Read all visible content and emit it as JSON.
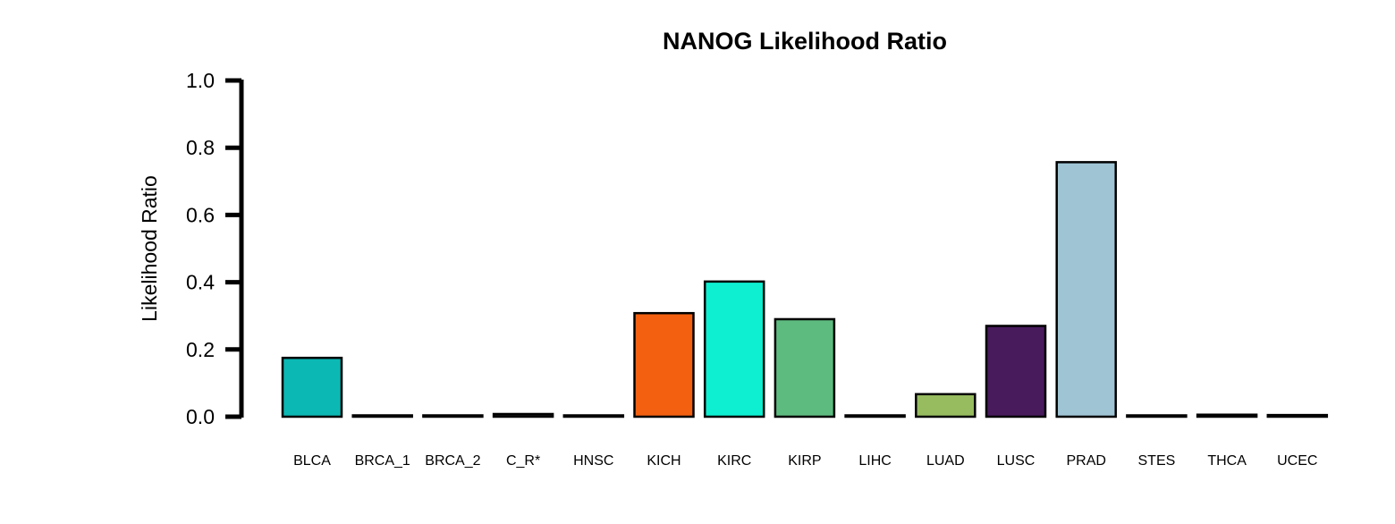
{
  "chart_data": {
    "type": "bar",
    "title": "NANOG Likelihood Ratio",
    "xlabel": "",
    "ylabel": "Likelihood Ratio",
    "ylim": [
      0,
      1.0
    ],
    "yticks": [
      "0.0",
      "0.2",
      "0.4",
      "0.6",
      "0.8",
      "1.0"
    ],
    "grid": false,
    "categories": [
      "BLCA",
      "BRCA_1",
      "BRCA_2",
      "C_R*",
      "HNSC",
      "KICH",
      "KIRC",
      "KIRP",
      "LIHC",
      "LUAD",
      "LUSC",
      "PRAD",
      "STES",
      "THCA",
      "UCEC"
    ],
    "values": [
      0.175,
      0.004,
      0.002,
      0.008,
      0.002,
      0.308,
      0.402,
      0.29,
      0.002,
      0.067,
      0.27,
      0.757,
      0.003,
      0.006,
      0.005
    ],
    "colors": [
      "#0BB8B4",
      "#1a1a1a",
      "#1a1a1a",
      "#1a1a1a",
      "#1a1a1a",
      "#F26010",
      "#0EEFD1",
      "#5EBB80",
      "#1a1a1a",
      "#97BC5F",
      "#481B5D",
      "#9FC5D4",
      "#1a1a1a",
      "#1a1a1a",
      "#1a1a1a"
    ]
  }
}
